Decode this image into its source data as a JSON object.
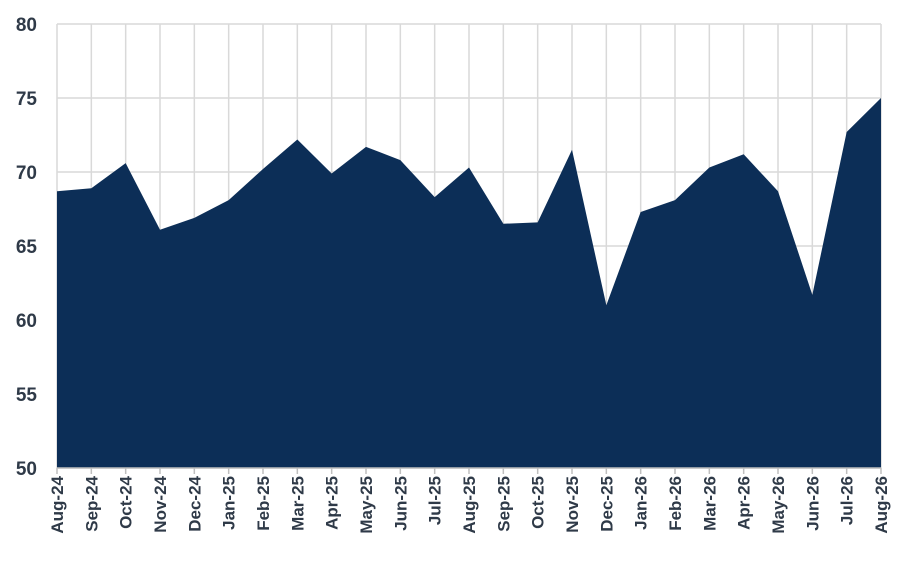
{
  "chart_data": {
    "type": "area",
    "title": "",
    "xlabel": "",
    "ylabel": "",
    "ylim": [
      50,
      80
    ],
    "yticks": [
      50,
      55,
      60,
      65,
      70,
      75,
      80
    ],
    "grid": true,
    "legend": "none",
    "fill_color": "#0c2e57",
    "grid_color": "#d9d9d9",
    "categories": [
      "Aug-24",
      "Sep-24",
      "Oct-24",
      "Nov-24",
      "Dec-24",
      "Jan-25",
      "Feb-25",
      "Mar-25",
      "Apr-25",
      "May-25",
      "Jun-25",
      "Jul-25",
      "Aug-25",
      "Sep-25",
      "Oct-25",
      "Nov-25",
      "Dec-25",
      "Jan-26",
      "Feb-26",
      "Mar-26",
      "Apr-26",
      "May-26",
      "Jun-26",
      "Jul-26",
      "Aug-26"
    ],
    "series": [
      {
        "values": [
          68.7,
          68.9,
          70.6,
          66.1,
          66.9,
          68.1,
          70.2,
          72.2,
          69.9,
          71.7,
          70.8,
          68.3,
          70.3,
          66.5,
          66.6,
          71.5,
          61.0,
          67.3,
          68.1,
          70.3,
          71.2,
          68.7,
          61.7,
          72.7,
          75.0
        ]
      }
    ]
  }
}
